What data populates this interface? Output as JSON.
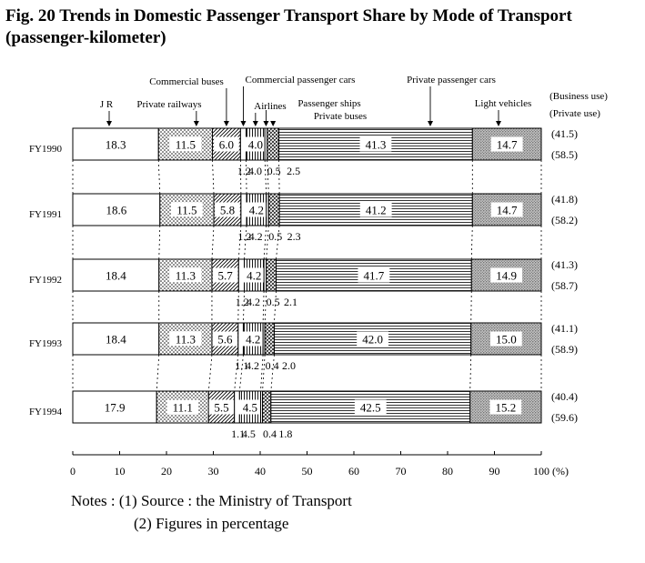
{
  "title": "Fig. 20 Trends in Domestic Passenger Transport Share by Mode of Transport (passenger-kilometer)",
  "notes": [
    "Notes : (1) Source : the Ministry of Transport",
    "(2) Figures in percentage"
  ],
  "colors": {
    "ink": "#000000",
    "background": "#ffffff",
    "shade": "#888888"
  },
  "chart_data": {
    "type": "bar",
    "orientation": "horizontal",
    "stacked": true,
    "categories": [
      "FY1990",
      "FY1991",
      "FY1992",
      "FY1993",
      "FY1994"
    ],
    "xlabel": "(%)",
    "xlim": [
      0,
      100
    ],
    "x_ticks": [
      0,
      10,
      20,
      30,
      40,
      50,
      60,
      70,
      80,
      90,
      100
    ],
    "series": [
      {
        "name": "J R",
        "values": [
          18.3,
          18.6,
          18.4,
          18.4,
          17.9
        ],
        "pattern": "blank",
        "labels": [
          "18.3",
          "18.6",
          "18.4",
          "18.4",
          "17.9"
        ]
      },
      {
        "name": "Private railways",
        "values": [
          11.5,
          11.5,
          11.3,
          11.3,
          11.1
        ],
        "pattern": "dots",
        "labels": [
          "11.5",
          "11.5",
          "11.3",
          "11.3",
          "11.1"
        ]
      },
      {
        "name": "Commercial buses",
        "values": [
          6.0,
          5.8,
          5.7,
          5.6,
          5.5
        ],
        "pattern": "diagonal",
        "labels": [
          "6.0",
          "5.8",
          "5.7",
          "5.6",
          "5.5"
        ]
      },
      {
        "name": "Commercial passenger cars",
        "values": [
          1.2,
          1.2,
          1.2,
          1.1,
          1.1
        ],
        "pattern": "blank",
        "labels": [
          "1.2",
          "1.2",
          "1.2",
          "1.1",
          "1.1"
        ]
      },
      {
        "name": "Airlines",
        "values": [
          4.0,
          4.2,
          4.2,
          4.2,
          4.5
        ],
        "pattern": "vertical",
        "labels": [
          "4.0",
          "4.2",
          "4.2",
          "4.2",
          "4.5"
        ]
      },
      {
        "name": "Passenger ships",
        "values": [
          0.5,
          0.5,
          0.5,
          0.4,
          0.4
        ],
        "pattern": "blank",
        "labels": [
          "0.5",
          "0.5",
          "0.5",
          "0.4",
          "0.4"
        ]
      },
      {
        "name": "Private buses",
        "values": [
          2.5,
          2.3,
          2.1,
          2.0,
          1.8
        ],
        "pattern": "crosshatch",
        "labels": [
          "2.5",
          "2.3",
          "2.1",
          "2.0",
          "1.8"
        ]
      },
      {
        "name": "Private passenger cars",
        "values": [
          41.3,
          41.2,
          41.7,
          42.0,
          42.5
        ],
        "pattern": "horizontal",
        "labels": [
          "41.3",
          "41.2",
          "41.7",
          "42.0",
          "42.5"
        ]
      },
      {
        "name": "Light vehicles",
        "values": [
          14.7,
          14.7,
          14.9,
          15.0,
          15.2
        ],
        "pattern": "shaded",
        "labels": [
          "14.7",
          "14.7",
          "14.9",
          "15.0",
          "15.2"
        ]
      }
    ],
    "right_labels": {
      "business_use_header": "(Business use)",
      "private_use_header": "(Private use)",
      "business_use": [
        "(41.5)",
        "(41.8)",
        "(41.3)",
        "(41.1)",
        "(40.4)"
      ],
      "private_use": [
        "(58.5)",
        "(58.2)",
        "(58.7)",
        "(58.9)",
        "(59.6)"
      ]
    },
    "legend_placement": "top",
    "grid": false
  }
}
